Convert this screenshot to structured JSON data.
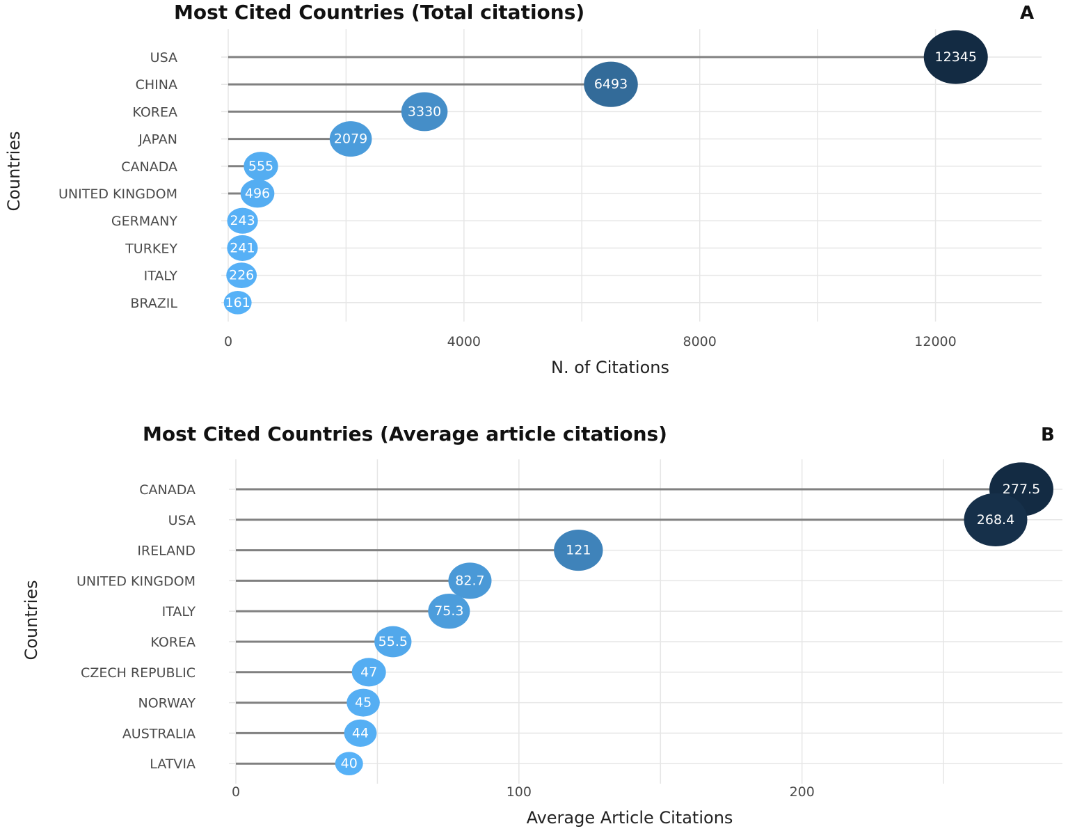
{
  "colors": {
    "low": "#56B1F7",
    "high": "#132B43",
    "stem": "#808080",
    "grid": "#E6E6E6"
  },
  "chart_data": [
    {
      "type": "lollipop",
      "panel": "A",
      "title": "Most Cited Countries (Total citations)",
      "xlabel": "N. of Citations",
      "ylabel": "Countries",
      "xlim": [
        0,
        13800
      ],
      "xticks": [
        0,
        4000,
        8000,
        12000
      ],
      "grid": true,
      "categories": [
        "USA",
        "CHINA",
        "KOREA",
        "JAPAN",
        "CANADA",
        "UNITED KINGDOM",
        "GERMANY",
        "TURKEY",
        "ITALY",
        "BRAZIL"
      ],
      "values": [
        12345,
        6493,
        3330,
        2079,
        555,
        496,
        243,
        241,
        226,
        161
      ],
      "value_labels": [
        "12345",
        "6493",
        "3330",
        "2079",
        "555",
        "496",
        "243",
        "241",
        "226",
        "161"
      ]
    },
    {
      "type": "lollipop",
      "panel": "B",
      "title": "Most Cited Countries (Average article citations)",
      "xlabel": "Average Article Citations",
      "ylabel": "Countries",
      "xlim": [
        0,
        292
      ],
      "xticks": [
        0,
        100,
        200
      ],
      "grid": true,
      "categories": [
        "CANADA",
        "USA",
        "IRELAND",
        "UNITED KINGDOM",
        "ITALY",
        "KOREA",
        "CZECH REPUBLIC",
        "NORWAY",
        "AUSTRALIA",
        "LATVIA"
      ],
      "values": [
        277.5,
        268.4,
        121,
        82.7,
        75.3,
        55.5,
        47,
        45,
        44,
        40
      ],
      "value_labels": [
        "277.5",
        "268.4",
        "121",
        "82.7",
        "75.3",
        "55.5",
        "47",
        "45",
        "44",
        "40"
      ]
    }
  ]
}
